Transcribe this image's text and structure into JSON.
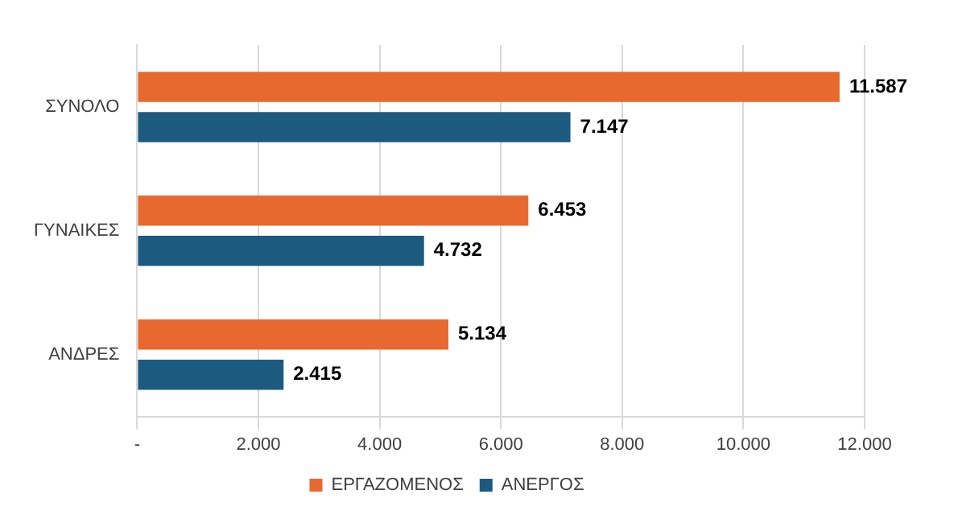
{
  "chart_data": {
    "type": "bar",
    "orientation": "horizontal",
    "categories": [
      "ΣΥΝΟΛΟ",
      "ΓΥΝΑΙΚΕΣ",
      "ΑΝΔΡΕΣ"
    ],
    "series": [
      {
        "name": "ΕΡΓΑΖΟΜΕΝΟΣ",
        "color": "#e8692f",
        "values": [
          11587,
          6453,
          5134
        ],
        "value_labels": [
          "11.587",
          "6.453",
          "5.134"
        ]
      },
      {
        "name": "ΑΝΕΡΓΟΣ",
        "color": "#1d5a80",
        "values": [
          7147,
          4732,
          2415
        ],
        "value_labels": [
          "7.147",
          "4.732",
          "2.415"
        ]
      }
    ],
    "xlim": [
      0,
      12000
    ],
    "xticks": [
      {
        "value": 0,
        "label": "-"
      },
      {
        "value": 2000,
        "label": "2.000"
      },
      {
        "value": 4000,
        "label": "4.000"
      },
      {
        "value": 6000,
        "label": "6.000"
      },
      {
        "value": 8000,
        "label": "8.000"
      },
      {
        "value": 10000,
        "label": "10.000"
      },
      {
        "value": 12000,
        "label": "12.000"
      }
    ],
    "grid": "x",
    "legend": "bottom"
  }
}
